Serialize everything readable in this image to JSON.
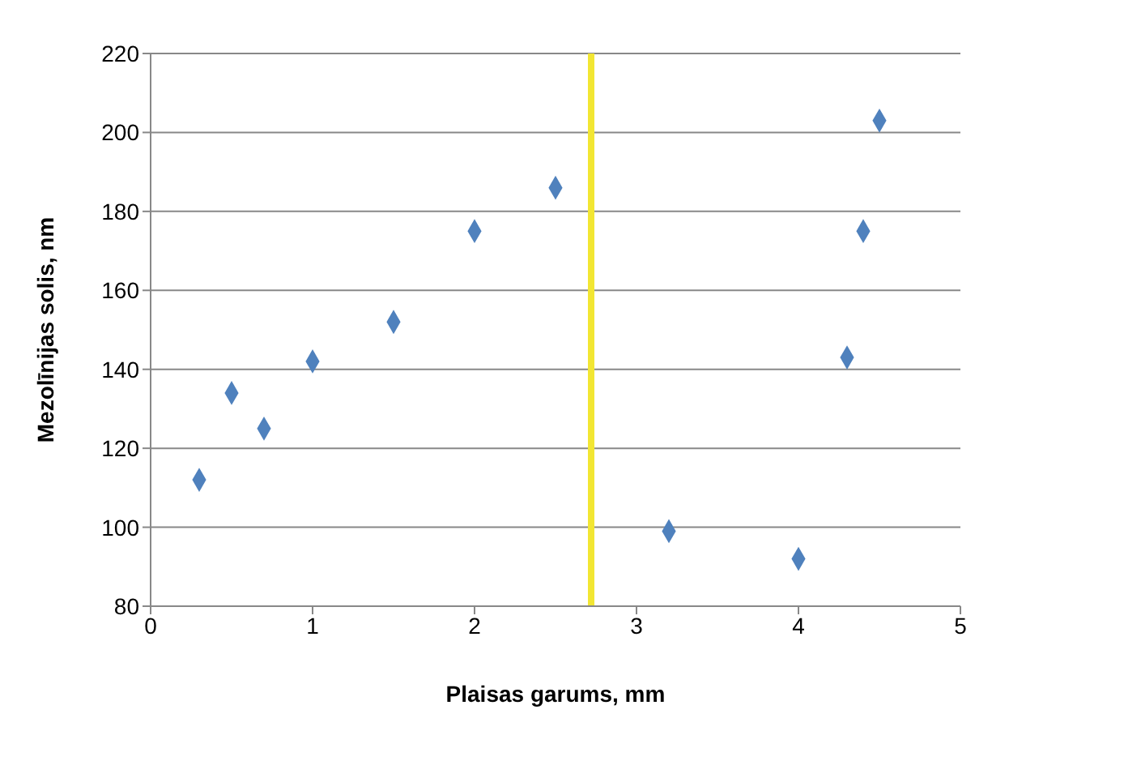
{
  "chart_data": {
    "type": "scatter",
    "xlabel": "Plaisas garums, mm",
    "ylabel": "Mezolīnijas solis, nm",
    "x": [
      0.3,
      0.5,
      0.7,
      1.0,
      1.5,
      2.0,
      2.5,
      3.2,
      4.0,
      4.3,
      4.4,
      4.5
    ],
    "values": [
      112,
      134,
      125,
      142,
      152,
      175,
      186,
      99,
      92,
      143,
      175,
      203
    ],
    "color": "#4f81bd",
    "marker": "diamond",
    "xlim": [
      0,
      5
    ],
    "xticks": [
      0,
      1,
      2,
      3,
      4,
      5
    ],
    "ylim": [
      80,
      220
    ],
    "yticks": [
      80,
      100,
      120,
      140,
      160,
      180,
      200,
      220
    ],
    "grid": "y",
    "ref_lines": [
      {
        "axis": "x",
        "value": 2.72,
        "color": "#f2e633"
      }
    ]
  }
}
